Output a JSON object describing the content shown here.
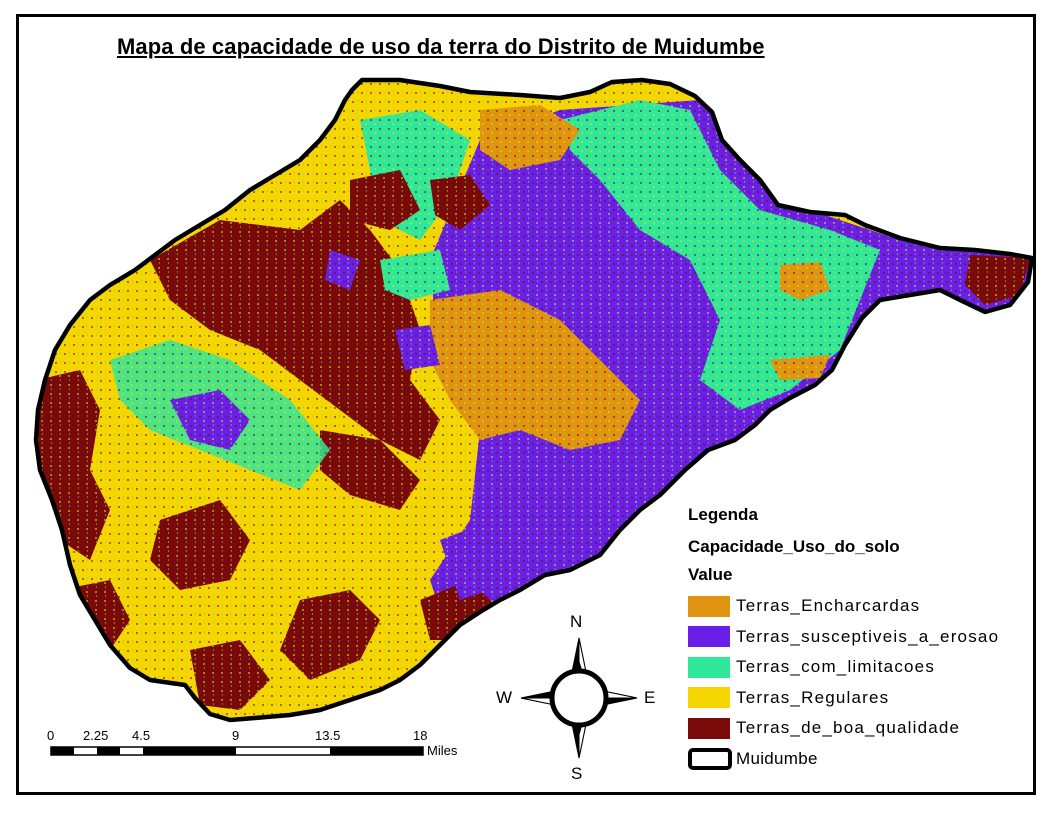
{
  "title": "Mapa de capacidade de uso da terra do Distrito de Muidumbe",
  "legend": {
    "heading": "Legenda",
    "field": "Capacidade_Uso_do_solo",
    "value_heading": "Value",
    "items": [
      {
        "label": "Terras_Encharcardas",
        "color": "#e09410"
      },
      {
        "label": "Terras_susceptiveis_a_erosao",
        "color": "#6a1fe6"
      },
      {
        "label": "Terras_com_limitacoes",
        "color": "#2fe89a"
      },
      {
        "label": "Terras_Regulares",
        "color": "#f5d600"
      },
      {
        "label": "Terras_de_boa_qualidade",
        "color": "#7a0a0a"
      }
    ],
    "boundary_label": "Muidumbe"
  },
  "compass": {
    "n": "N",
    "s": "S",
    "e": "E",
    "w": "W"
  },
  "scale_bar": {
    "ticks": [
      "0",
      "2.25",
      "4.5",
      "9",
      "13.5",
      "18"
    ],
    "unit": "Miles"
  }
}
